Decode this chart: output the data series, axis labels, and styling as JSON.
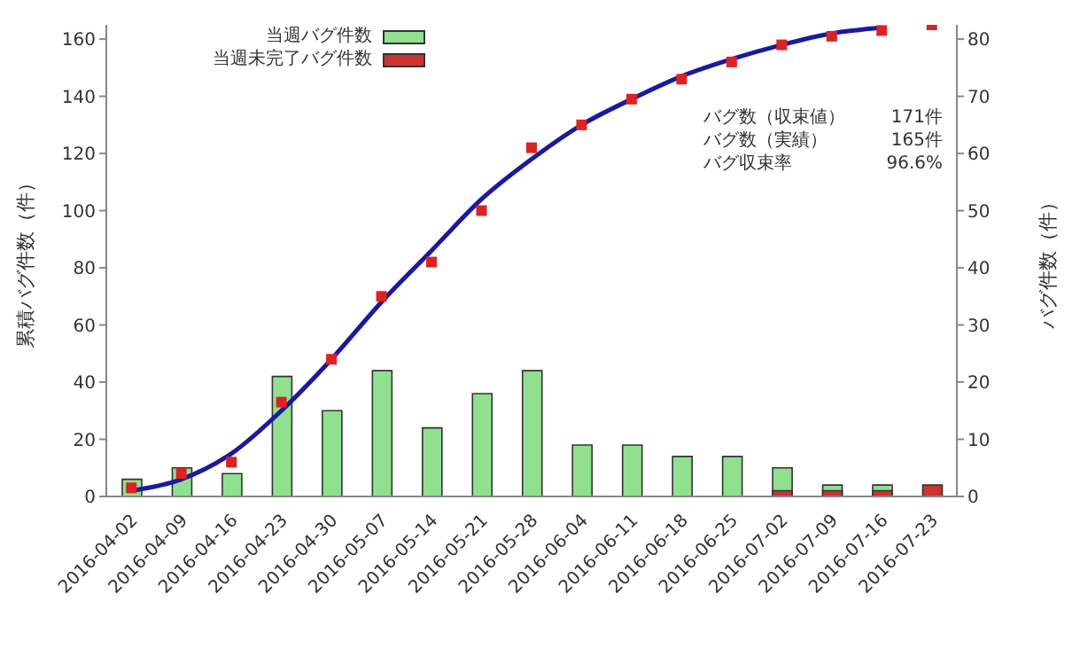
{
  "chart_data": {
    "type": "bar",
    "ylabel": "累積バグ件数（件）",
    "y2label": "バグ件数（件）",
    "categories": [
      "2016-04-02",
      "2016-04-09",
      "2016-04-16",
      "2016-04-23",
      "2016-04-30",
      "2016-05-07",
      "2016-05-14",
      "2016-05-21",
      "2016-05-28",
      "2016-06-04",
      "2016-06-11",
      "2016-06-18",
      "2016-06-25",
      "2016-07-02",
      "2016-07-09",
      "2016-07-16",
      "2016-07-23"
    ],
    "series": [
      {
        "name": "当週バグ件数",
        "color": "#90e090",
        "axis": "y2",
        "values": [
          3,
          5,
          4,
          21,
          15,
          22,
          12,
          18,
          22,
          9,
          9,
          7,
          7,
          5,
          2,
          2,
          null
        ]
      },
      {
        "name": "当週未完了バグ件数",
        "color": "#cc3333",
        "axis": "y2",
        "values": [
          0,
          0,
          0,
          0,
          0,
          0,
          0,
          0,
          0,
          0,
          0,
          0,
          0,
          1,
          1,
          1,
          2
        ]
      },
      {
        "type": "scatter",
        "color": "#dd2222",
        "marker": "square",
        "values": [
          3,
          8,
          12,
          33,
          48,
          70,
          82,
          100,
          122,
          130,
          139,
          146,
          152,
          158,
          161,
          163,
          165
        ]
      },
      {
        "type": "line",
        "color": "#1a1aa0",
        "marker": "none",
        "values": [
          2,
          6,
          15,
          30,
          48,
          68,
          86,
          104,
          118,
          130,
          139,
          147,
          153,
          158,
          162,
          164,
          null
        ]
      }
    ],
    "ylim": [
      0,
      165
    ],
    "yticks": [
      0,
      20,
      40,
      60,
      80,
      100,
      120,
      140,
      160
    ],
    "y2lim": [
      0,
      82.5
    ],
    "y2ticks": [
      0,
      10,
      20,
      30,
      40,
      50,
      60,
      70,
      80
    ],
    "annotations": [
      "バグ数（収束値） 171件",
      "バグ数（実績） 165件",
      "バグ収束率 96.6%"
    ],
    "legend": "top"
  }
}
